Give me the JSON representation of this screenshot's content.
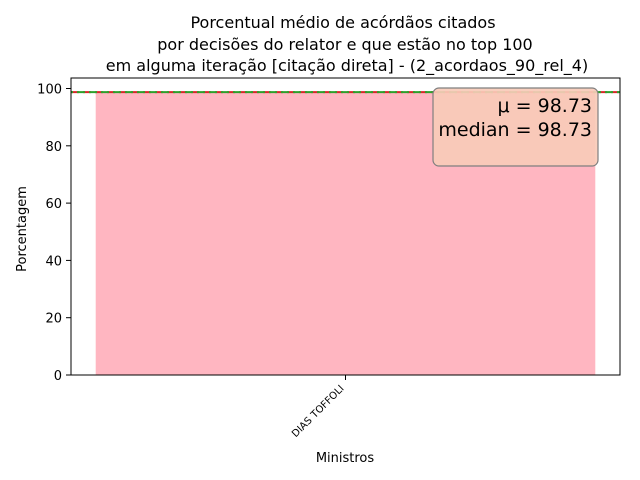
{
  "chart_data": {
    "type": "bar",
    "title_lines": [
      "Porcentual médio de acórdãos citados",
      "por decisões do relator e que estão no top 100",
      "em alguma iteração [citação direta] - (2_acordaos_90_rel_4)"
    ],
    "xlabel": "Ministros",
    "ylabel": "Porcentagem",
    "categories": [
      "DIAS TOFFOLI"
    ],
    "values": [
      98.73
    ],
    "ylim": [
      0,
      103.67
    ],
    "yticks": [
      0,
      20,
      40,
      60,
      80,
      100
    ],
    "mean": 98.73,
    "median": 98.73,
    "stats_box": {
      "mean_label": "μ = 98.73",
      "median_label": "median = 98.73"
    },
    "grid": false,
    "colors": {
      "bar": "#ffb6c1",
      "mean_line": "#d62728",
      "median_line": "#2ca02c",
      "box_fill": "#f8cbb8",
      "box_edge": "#7f7f7f"
    }
  }
}
